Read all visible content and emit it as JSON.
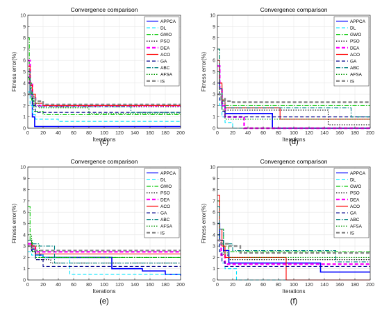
{
  "figure": {
    "panels": [
      "(c)",
      "(d)",
      "(e)",
      "(f)"
    ]
  },
  "legend_styles": {
    "APPCA": {
      "color": "#0000ff",
      "dash": "solid"
    },
    "DL": {
      "color": "#00e5ff",
      "dash": "dash"
    },
    "GWO": {
      "color": "#00c800",
      "dash": "dashdot"
    },
    "PSO": {
      "color": "#000000",
      "dash": "dot"
    },
    "DEA": {
      "color": "#ff00ff",
      "dash": "dash"
    },
    "ACO": {
      "color": "#ff0000",
      "dash": "solid"
    },
    "GA": {
      "color": "#00008b",
      "dash": "dash"
    },
    "ABC": {
      "color": "#008080",
      "dash": "dashdot"
    },
    "AFSA": {
      "color": "#009600",
      "dash": "dot"
    },
    "IS": {
      "color": "#888888",
      "dash": "dash"
    }
  },
  "chart_data": [
    {
      "panel": "(c)",
      "type": "line",
      "title": "Convergence comparison",
      "xlabel": "Iterations",
      "ylabel": "Fitness error(%)",
      "xlim": [
        0,
        200
      ],
      "ylim": [
        0,
        10
      ],
      "xticks": [
        0,
        20,
        40,
        60,
        80,
        100,
        120,
        140,
        160,
        180,
        200
      ],
      "yticks": [
        0,
        1,
        2,
        3,
        4,
        5,
        6,
        7,
        8,
        9,
        10
      ],
      "legend": "top-right",
      "series": [
        {
          "name": "APPCA",
          "x": [
            0,
            3,
            6,
            9,
            12,
            200
          ],
          "y": [
            4.5,
            3.0,
            1.0,
            0.15,
            0.15,
            0.15
          ]
        },
        {
          "name": "DL",
          "x": [
            0,
            3,
            6,
            10,
            40,
            200
          ],
          "y": [
            3.2,
            2.0,
            1.2,
            0.8,
            0.6,
            0.6
          ]
        },
        {
          "name": "GWO",
          "x": [
            0,
            2,
            5,
            8,
            20,
            200
          ],
          "y": [
            8.0,
            4.0,
            2.5,
            1.5,
            1.2,
            1.2
          ]
        },
        {
          "name": "PSO",
          "x": [
            0,
            3,
            6,
            10,
            30,
            200
          ],
          "y": [
            5.0,
            3.5,
            2.6,
            2.0,
            1.9,
            1.9
          ]
        },
        {
          "name": "DEA",
          "x": [
            0,
            3,
            6,
            10,
            200
          ],
          "y": [
            6.0,
            4.0,
            2.8,
            2.0,
            2.0
          ]
        },
        {
          "name": "ACO",
          "x": [
            0,
            3,
            6,
            10,
            20,
            200
          ],
          "y": [
            5.5,
            3.8,
            3.0,
            2.2,
            2.0,
            2.0
          ]
        },
        {
          "name": "GA",
          "x": [
            0,
            3,
            6,
            10,
            200
          ],
          "y": [
            4.0,
            2.8,
            2.0,
            1.4,
            1.4
          ]
        },
        {
          "name": "ABC",
          "x": [
            0,
            3,
            6,
            10,
            130,
            135,
            200
          ],
          "y": [
            5.0,
            3.2,
            2.4,
            1.9,
            1.9,
            1.4,
            1.4
          ]
        },
        {
          "name": "AFSA",
          "x": [
            0,
            3,
            8,
            15,
            75,
            80,
            200
          ],
          "y": [
            4.5,
            3.0,
            2.2,
            1.8,
            1.8,
            1.3,
            1.3
          ]
        },
        {
          "name": "IS",
          "x": [
            0,
            5,
            10,
            20,
            200
          ],
          "y": [
            3.0,
            2.8,
            2.4,
            2.1,
            2.1
          ]
        }
      ]
    },
    {
      "panel": "(d)",
      "type": "line",
      "title": "Convergence comparison",
      "xlabel": "Iterations",
      "ylabel": "Fitness error(%)",
      "xlim": [
        0,
        200
      ],
      "ylim": [
        0,
        10
      ],
      "xticks": [
        0,
        20,
        40,
        60,
        80,
        100,
        120,
        140,
        160,
        180,
        200
      ],
      "yticks": [
        0,
        1,
        2,
        3,
        4,
        5,
        6,
        7,
        8,
        9,
        10
      ],
      "legend": "top-right",
      "series": [
        {
          "name": "APPCA",
          "x": [
            0,
            3,
            6,
            10,
            70,
            72,
            200
          ],
          "y": [
            5.5,
            3.5,
            2.0,
            1.3,
            1.3,
            0.0,
            0.0
          ]
        },
        {
          "name": "DL",
          "x": [
            0,
            3,
            6,
            10,
            20,
            200
          ],
          "y": [
            3.0,
            2.0,
            1.0,
            0.5,
            0.0,
            0.0
          ]
        },
        {
          "name": "GWO",
          "x": [
            0,
            3,
            6,
            10,
            200
          ],
          "y": [
            7.0,
            4.0,
            2.5,
            2.0,
            2.0
          ]
        },
        {
          "name": "PSO",
          "x": [
            0,
            3,
            6,
            10,
            140,
            145,
            200
          ],
          "y": [
            5.0,
            3.0,
            2.2,
            1.6,
            1.6,
            0.3,
            0.3
          ]
        },
        {
          "name": "DEA",
          "x": [
            0,
            3,
            6,
            10,
            30,
            35,
            200
          ],
          "y": [
            5.5,
            3.5,
            2.0,
            1.0,
            1.0,
            0.0,
            0.0
          ]
        },
        {
          "name": "ACO",
          "x": [
            0,
            3,
            6,
            10,
            80,
            82,
            200
          ],
          "y": [
            6.0,
            4.0,
            2.5,
            1.8,
            1.8,
            0.8,
            0.8
          ]
        },
        {
          "name": "GA",
          "x": [
            0,
            3,
            6,
            10,
            200
          ],
          "y": [
            4.0,
            2.5,
            1.5,
            1.0,
            1.0
          ]
        },
        {
          "name": "ABC",
          "x": [
            0,
            3,
            6,
            10,
            170,
            175,
            200
          ],
          "y": [
            7.0,
            3.5,
            2.4,
            1.8,
            1.8,
            1.0,
            1.0
          ]
        },
        {
          "name": "AFSA",
          "x": [
            0,
            3,
            6,
            10,
            200
          ],
          "y": [
            5.0,
            3.0,
            1.6,
            0.8,
            0.8
          ]
        },
        {
          "name": "IS",
          "x": [
            0,
            5,
            10,
            20,
            200
          ],
          "y": [
            3.0,
            2.6,
            2.4,
            2.3,
            2.3
          ]
        }
      ]
    },
    {
      "panel": "(e)",
      "type": "line",
      "title": "Convergence comparison",
      "xlabel": "Iterations",
      "ylabel": "Fitness error(%)",
      "xlim": [
        0,
        200
      ],
      "ylim": [
        0,
        10
      ],
      "xticks": [
        0,
        20,
        40,
        60,
        80,
        100,
        120,
        140,
        160,
        180,
        200
      ],
      "yticks": [
        0,
        1,
        2,
        3,
        4,
        5,
        6,
        7,
        8,
        9,
        10
      ],
      "legend": "top-right",
      "series": [
        {
          "name": "APPCA",
          "x": [
            0,
            5,
            10,
            20,
            100,
            110,
            150,
            180,
            200
          ],
          "y": [
            3.0,
            2.7,
            2.2,
            2.0,
            2.0,
            1.0,
            0.8,
            0.5,
            0.4
          ]
        },
        {
          "name": "DL",
          "x": [
            0,
            5,
            20,
            50,
            55,
            200
          ],
          "y": [
            2.5,
            2.2,
            2.0,
            2.0,
            0.5,
            0.5
          ]
        },
        {
          "name": "GWO",
          "x": [
            0,
            3,
            6,
            10,
            200
          ],
          "y": [
            6.5,
            3.5,
            2.5,
            2.0,
            2.0
          ]
        },
        {
          "name": "PSO",
          "x": [
            0,
            5,
            10,
            30,
            200
          ],
          "y": [
            3.0,
            2.5,
            1.8,
            1.5,
            1.5
          ]
        },
        {
          "name": "DEA",
          "x": [
            0,
            5,
            10,
            200
          ],
          "y": [
            3.2,
            3.0,
            2.5,
            2.5
          ]
        },
        {
          "name": "ACO",
          "x": [
            0,
            5,
            10,
            200
          ],
          "y": [
            3.5,
            3.0,
            2.3,
            2.3
          ]
        },
        {
          "name": "GA",
          "x": [
            0,
            5,
            10,
            20,
            200
          ],
          "y": [
            3.0,
            2.6,
            1.8,
            1.2,
            1.2
          ]
        },
        {
          "name": "ABC",
          "x": [
            0,
            5,
            15,
            30,
            35,
            200
          ],
          "y": [
            3.5,
            3.2,
            3.0,
            3.0,
            1.5,
            1.5
          ]
        },
        {
          "name": "AFSA",
          "x": [
            0,
            5,
            15,
            200
          ],
          "y": [
            4.0,
            3.0,
            2.0,
            2.0
          ]
        },
        {
          "name": "IS",
          "x": [
            0,
            5,
            10,
            200
          ],
          "y": [
            3.0,
            2.8,
            2.6,
            2.6
          ]
        }
      ]
    },
    {
      "panel": "(f)",
      "type": "line",
      "title": "Convergence comparison",
      "xlabel": "Iterations",
      "ylabel": "Fitness error(%)",
      "xlim": [
        0,
        200
      ],
      "ylim": [
        0,
        10
      ],
      "xticks": [
        0,
        20,
        40,
        60,
        80,
        100,
        120,
        140,
        160,
        180,
        200
      ],
      "yticks": [
        0,
        1,
        2,
        3,
        4,
        5,
        6,
        7,
        8,
        9,
        10
      ],
      "legend": "top-right",
      "series": [
        {
          "name": "APPCA",
          "x": [
            0,
            3,
            8,
            15,
            130,
            135,
            200
          ],
          "y": [
            5.0,
            3.5,
            2.6,
            1.5,
            1.5,
            0.7,
            0.7
          ]
        },
        {
          "name": "DL",
          "x": [
            0,
            3,
            6,
            10,
            20,
            25,
            200
          ],
          "y": [
            4.0,
            2.5,
            1.5,
            1.0,
            1.0,
            0.0,
            0.0
          ]
        },
        {
          "name": "GWO",
          "x": [
            0,
            3,
            8,
            15,
            200
          ],
          "y": [
            7.0,
            4.5,
            3.0,
            2.5,
            2.5
          ]
        },
        {
          "name": "PSO",
          "x": [
            0,
            3,
            8,
            15,
            200
          ],
          "y": [
            5.0,
            3.5,
            2.2,
            1.8,
            1.8
          ]
        },
        {
          "name": "DEA",
          "x": [
            0,
            5,
            10,
            200
          ],
          "y": [
            3.5,
            2.2,
            1.4,
            1.4
          ]
        },
        {
          "name": "ACO",
          "x": [
            0,
            3,
            6,
            10,
            85,
            90,
            200
          ],
          "y": [
            7.5,
            4.5,
            3.0,
            2.0,
            2.0,
            0.0,
            0.0
          ]
        },
        {
          "name": "GA",
          "x": [
            0,
            3,
            6,
            10,
            200
          ],
          "y": [
            4.0,
            2.5,
            1.6,
            1.2,
            1.2
          ]
        },
        {
          "name": "ABC",
          "x": [
            0,
            3,
            8,
            20,
            150,
            155,
            200
          ],
          "y": [
            6.5,
            4.5,
            3.2,
            2.6,
            2.6,
            1.6,
            1.6
          ]
        },
        {
          "name": "AFSA",
          "x": [
            0,
            3,
            8,
            15,
            200
          ],
          "y": [
            5.0,
            3.5,
            2.4,
            2.0,
            2.0
          ]
        },
        {
          "name": "IS",
          "x": [
            0,
            5,
            15,
            30,
            200
          ],
          "y": [
            3.5,
            3.2,
            3.0,
            2.4,
            2.4
          ]
        }
      ]
    }
  ]
}
